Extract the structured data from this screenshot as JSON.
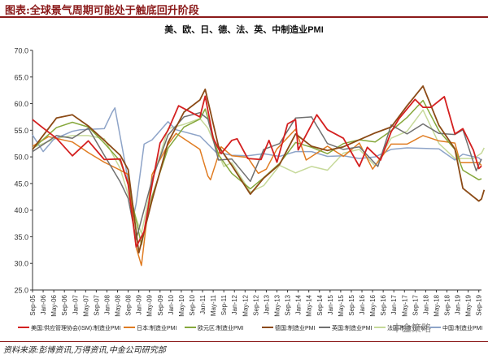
{
  "figure": {
    "title": "图表:全球景气周期可能处于触底回升阶段",
    "source": "资料来源:彭博资讯,万得资讯,中金公司研究部",
    "watermark": "中金策略"
  },
  "chart_data": {
    "type": "line",
    "title": "美、欧、日、德、法、英、中制造业PMI",
    "xlabel": "",
    "ylabel": "",
    "ylim": [
      25,
      70
    ],
    "yticks": [
      "25.0",
      "30.0",
      "35.0",
      "40.0",
      "45.0",
      "50.0",
      "55.0",
      "60.0",
      "65.0",
      "70.0"
    ],
    "xticks": [
      "Sep-05",
      "Jan-06",
      "May-06",
      "Sep-06",
      "Jan-07",
      "May-07",
      "Sep-07",
      "Jan-08",
      "May-08",
      "Sep-08",
      "Jan-09",
      "May-09",
      "Sep-09",
      "Jan-10",
      "May-10",
      "Sep-10",
      "Jan-11",
      "May-11",
      "Sep-11",
      "Jan-12",
      "May-12",
      "Sep-12",
      "Jan-13",
      "May-13",
      "Sep-13",
      "Jan-14",
      "May-14",
      "Sep-14",
      "Jan-15",
      "May-15",
      "Sep-15",
      "Jan-16",
      "May-16",
      "Sep-16",
      "Jan-17",
      "May-17",
      "Sep-17",
      "Jan-18",
      "May-18",
      "Sep-18",
      "Jan-19",
      "May-19",
      "Sep-19"
    ],
    "grid": false,
    "legend_position": "bottom",
    "x_start": "Sep-05",
    "x_end": "Oct-19",
    "colors": {
      "us": "#d42020",
      "japan": "#e07c22",
      "eurozone": "#86a83c",
      "germany": "#8b4a16",
      "uk": "#707070",
      "france": "#c6d99a",
      "china": "#8ea4c8"
    },
    "series": [
      {
        "key": "us",
        "name": "美国:供应管理协会(ISM):制造业PMI",
        "points": [
          [
            "Sep-05",
            57
          ],
          [
            "Dec-05",
            55.8
          ],
          [
            "Jun-06",
            53.5
          ],
          [
            "Dec-06",
            50.2
          ],
          [
            "Jun-07",
            53
          ],
          [
            "Dec-07",
            49.5
          ],
          [
            "Jun-08",
            49.6
          ],
          [
            "Sep-08",
            44.8
          ],
          [
            "Dec-08",
            33.1
          ],
          [
            "Mar-09",
            36
          ],
          [
            "Jun-09",
            44.8
          ],
          [
            "Sep-09",
            52.6
          ],
          [
            "Dec-09",
            55
          ],
          [
            "Apr-10",
            59.6
          ],
          [
            "Dec-10",
            57.5
          ],
          [
            "Feb-11",
            61.4
          ],
          [
            "May-11",
            53.5
          ],
          [
            "Aug-11",
            50.6
          ],
          [
            "Dec-11",
            53.1
          ],
          [
            "Feb-12",
            53.4
          ],
          [
            "Jun-12",
            49.7
          ],
          [
            "Nov-12",
            49.5
          ],
          [
            "Feb-13",
            53.1
          ],
          [
            "May-13",
            49
          ],
          [
            "Sep-13",
            56.2
          ],
          [
            "Dec-13",
            57
          ],
          [
            "Jan-14",
            51.3
          ],
          [
            "Aug-14",
            57.9
          ],
          [
            "Dec-14",
            55.1
          ],
          [
            "Jun-15",
            53.5
          ],
          [
            "Dec-15",
            48.2
          ],
          [
            "Mar-16",
            51.8
          ],
          [
            "Aug-16",
            49.4
          ],
          [
            "Dec-16",
            54.7
          ],
          [
            "Mar-17",
            57.2
          ],
          [
            "Sep-17",
            60.8
          ],
          [
            "Dec-17",
            59.3
          ],
          [
            "Mar-18",
            59.3
          ],
          [
            "Aug-18",
            61.3
          ],
          [
            "Dec-18",
            54.3
          ],
          [
            "Mar-19",
            55.3
          ],
          [
            "Jul-19",
            51.2
          ],
          [
            "Sep-19",
            47.8
          ],
          [
            "Oct-19",
            48.3
          ]
        ]
      },
      {
        "key": "japan",
        "name": "日本:制造业PMI",
        "points": [
          [
            "Sep-05",
            52
          ],
          [
            "Mar-06",
            53.8
          ],
          [
            "Dec-06",
            52.8
          ],
          [
            "Jun-07",
            50.8
          ],
          [
            "Dec-07",
            49
          ],
          [
            "Jun-08",
            47.5
          ],
          [
            "Sep-08",
            46.7
          ],
          [
            "Dec-08",
            33
          ],
          [
            "Feb-09",
            29.6
          ],
          [
            "Jun-09",
            46.7
          ],
          [
            "Dec-09",
            52.3
          ],
          [
            "Mar-10",
            54.4
          ],
          [
            "Dec-10",
            51.4
          ],
          [
            "Mar-11",
            46.4
          ],
          [
            "Apr-11",
            45.7
          ],
          [
            "Aug-11",
            51.9
          ],
          [
            "Dec-11",
            50.2
          ],
          [
            "Jun-12",
            49.9
          ],
          [
            "Oct-12",
            46.9
          ],
          [
            "Jan-13",
            47.7
          ],
          [
            "May-13",
            51.5
          ],
          [
            "Dec-13",
            55.2
          ],
          [
            "Apr-14",
            49.4
          ],
          [
            "Dec-14",
            52
          ],
          [
            "Jun-15",
            50.1
          ],
          [
            "Dec-15",
            52.6
          ],
          [
            "May-16",
            47.7
          ],
          [
            "Dec-16",
            52.4
          ],
          [
            "Jun-17",
            52.4
          ],
          [
            "Dec-17",
            54
          ],
          [
            "Jun-18",
            53
          ],
          [
            "Dec-18",
            52.6
          ],
          [
            "Feb-19",
            48.9
          ],
          [
            "Sep-19",
            48.9
          ],
          [
            "Oct-19",
            48.4
          ]
        ]
      },
      {
        "key": "eurozone",
        "name": "欧元区:制造业PMI",
        "points": [
          [
            "Sep-05",
            51.5
          ],
          [
            "Jun-06",
            55.5
          ],
          [
            "Dec-06",
            56.5
          ],
          [
            "Jun-07",
            55.6
          ],
          [
            "Dec-07",
            52.6
          ],
          [
            "Jun-08",
            49.2
          ],
          [
            "Sep-08",
            45
          ],
          [
            "Feb-09",
            33.5
          ],
          [
            "Jun-09",
            42.6
          ],
          [
            "Dec-09",
            51.6
          ],
          [
            "Jun-10",
            55.6
          ],
          [
            "Dec-10",
            57.1
          ],
          [
            "Feb-11",
            59
          ],
          [
            "Jul-11",
            50.4
          ],
          [
            "Dec-11",
            46.9
          ],
          [
            "Jul-12",
            44
          ],
          [
            "Dec-12",
            46.1
          ],
          [
            "Jun-13",
            48.8
          ],
          [
            "Dec-13",
            52.7
          ],
          [
            "Jun-14",
            51.8
          ],
          [
            "Dec-14",
            50.6
          ],
          [
            "Jun-15",
            52.5
          ],
          [
            "Dec-15",
            53.2
          ],
          [
            "Jun-16",
            52.8
          ],
          [
            "Dec-16",
            54.9
          ],
          [
            "Jun-17",
            57.4
          ],
          [
            "Dec-17",
            60.6
          ],
          [
            "Jun-18",
            54.9
          ],
          [
            "Dec-18",
            51.4
          ],
          [
            "Mar-19",
            47.5
          ],
          [
            "Sep-19",
            45.7
          ],
          [
            "Oct-19",
            45.9
          ]
        ]
      },
      {
        "key": "germany",
        "name": "德国:制造业PMI",
        "points": [
          [
            "Sep-05",
            51.4
          ],
          [
            "Jun-06",
            57.3
          ],
          [
            "Dec-06",
            57.9
          ],
          [
            "Jun-07",
            55.8
          ],
          [
            "Dec-07",
            53.1
          ],
          [
            "Jun-08",
            50.3
          ],
          [
            "Sep-08",
            47.6
          ],
          [
            "Jan-09",
            32
          ],
          [
            "Jun-09",
            41.9
          ],
          [
            "Dec-09",
            52.7
          ],
          [
            "Jun-10",
            58.4
          ],
          [
            "Dec-10",
            60.7
          ],
          [
            "Feb-11",
            62.7
          ],
          [
            "Jul-11",
            52
          ],
          [
            "Dec-11",
            48.4
          ],
          [
            "Jul-12",
            43
          ],
          [
            "Dec-12",
            46
          ],
          [
            "Jun-13",
            48.6
          ],
          [
            "Dec-13",
            54.3
          ],
          [
            "Jun-14",
            52
          ],
          [
            "Dec-14",
            51.2
          ],
          [
            "Jun-15",
            51.9
          ],
          [
            "Dec-15",
            53.2
          ],
          [
            "Jun-16",
            54.5
          ],
          [
            "Dec-16",
            55.6
          ],
          [
            "Jun-17",
            59.6
          ],
          [
            "Dec-17",
            63.3
          ],
          [
            "Jun-18",
            55.9
          ],
          [
            "Dec-18",
            51.5
          ],
          [
            "Mar-19",
            44.1
          ],
          [
            "Sep-19",
            41.7
          ],
          [
            "Oct-19",
            42.1
          ],
          [
            "Nov-19",
            43.8
          ]
        ]
      },
      {
        "key": "uk",
        "name": "英国:制造业PMI",
        "points": [
          [
            "Sep-05",
            51
          ],
          [
            "Jun-06",
            54
          ],
          [
            "Dec-06",
            53.5
          ],
          [
            "Jun-07",
            55.4
          ],
          [
            "Dec-07",
            50.3
          ],
          [
            "Jun-08",
            45.3
          ],
          [
            "Sep-08",
            42.2
          ],
          [
            "Dec-08",
            34.5
          ],
          [
            "Jun-09",
            45.7
          ],
          [
            "Dec-09",
            54.1
          ],
          [
            "Jun-10",
            57.5
          ],
          [
            "Dec-10",
            58.3
          ],
          [
            "Mar-11",
            57.1
          ],
          [
            "Jul-11",
            49.4
          ],
          [
            "Dec-11",
            49.6
          ],
          [
            "Jul-12",
            45.4
          ],
          [
            "Dec-12",
            51.4
          ],
          [
            "Jun-13",
            52.5
          ],
          [
            "Dec-13",
            57.3
          ],
          [
            "Jun-14",
            57.5
          ],
          [
            "Dec-14",
            52.5
          ],
          [
            "Jun-15",
            51.4
          ],
          [
            "Dec-15",
            51.9
          ],
          [
            "Jul-16",
            48.2
          ],
          [
            "Dec-16",
            56
          ],
          [
            "Jun-17",
            54.3
          ],
          [
            "Dec-17",
            56.2
          ],
          [
            "Jun-18",
            54.4
          ],
          [
            "Dec-18",
            54.2
          ],
          [
            "Mar-19",
            55.1
          ],
          [
            "Aug-19",
            47.4
          ],
          [
            "Oct-19",
            49.6
          ]
        ]
      },
      {
        "key": "france",
        "name": "法国:制造业PMI",
        "points": [
          [
            "Sep-05",
            51.7
          ],
          [
            "Jun-06",
            53.5
          ],
          [
            "Dec-06",
            54
          ],
          [
            "Jun-07",
            54
          ],
          [
            "Dec-07",
            53.4
          ],
          [
            "Jun-08",
            47.8
          ],
          [
            "Sep-08",
            42.9
          ],
          [
            "Feb-09",
            35.6
          ],
          [
            "Jun-09",
            45.3
          ],
          [
            "Dec-09",
            55.3
          ],
          [
            "Jun-10",
            56.1
          ],
          [
            "Dec-10",
            57.2
          ],
          [
            "Mar-11",
            55.4
          ],
          [
            "Sep-11",
            48.2
          ],
          [
            "Dec-11",
            48.9
          ],
          [
            "Jul-12",
            43.4
          ],
          [
            "Dec-12",
            44.6
          ],
          [
            "Jun-13",
            48.4
          ],
          [
            "Dec-13",
            47
          ],
          [
            "Jun-14",
            48.2
          ],
          [
            "Dec-14",
            47.5
          ],
          [
            "Jun-15",
            50.7
          ],
          [
            "Dec-15",
            51.4
          ],
          [
            "Jun-16",
            48.3
          ],
          [
            "Dec-16",
            53.5
          ],
          [
            "Jun-17",
            54.8
          ],
          [
            "Dec-17",
            58.8
          ],
          [
            "Jun-18",
            52.5
          ],
          [
            "Dec-18",
            49.7
          ],
          [
            "Mar-19",
            49.7
          ],
          [
            "Jul-19",
            49.7
          ],
          [
            "Oct-19",
            50.7
          ],
          [
            "Nov-19",
            51.7
          ]
        ]
      },
      {
        "key": "china",
        "name": "中国:制造业PMI",
        "points": [
          [
            "Sep-05",
            54.1
          ],
          [
            "Jan-06",
            51
          ],
          [
            "May-06",
            53.3
          ],
          [
            "Dec-06",
            54.8
          ],
          [
            "Mar-07",
            55.1
          ],
          [
            "Dec-07",
            55.3
          ],
          [
            "Mar-08",
            58.4
          ],
          [
            "Apr-08",
            59.2
          ],
          [
            "Aug-08",
            48.4
          ],
          [
            "Nov-08",
            38.8
          ],
          [
            "Dec-08",
            41.2
          ],
          [
            "Mar-09",
            52.4
          ],
          [
            "Jun-09",
            53.2
          ],
          [
            "Dec-09",
            56.6
          ],
          [
            "Mar-10",
            55.1
          ],
          [
            "Dec-10",
            53.9
          ],
          [
            "Jun-11",
            50.9
          ],
          [
            "Dec-11",
            50.3
          ],
          [
            "Jun-12",
            50.2
          ],
          [
            "Dec-12",
            50.6
          ],
          [
            "Jun-13",
            50.1
          ],
          [
            "Dec-13",
            51
          ],
          [
            "Jun-14",
            51
          ],
          [
            "Dec-14",
            50.1
          ],
          [
            "Jun-15",
            50.2
          ],
          [
            "Dec-15",
            49.7
          ],
          [
            "Jun-16",
            50
          ],
          [
            "Dec-16",
            51.4
          ],
          [
            "Jun-17",
            51.7
          ],
          [
            "Dec-17",
            51.6
          ],
          [
            "Jun-18",
            51.5
          ],
          [
            "Dec-18",
            49.4
          ],
          [
            "Mar-19",
            50.5
          ],
          [
            "Sep-19",
            49.8
          ],
          [
            "Oct-19",
            49.3
          ]
        ]
      }
    ]
  }
}
